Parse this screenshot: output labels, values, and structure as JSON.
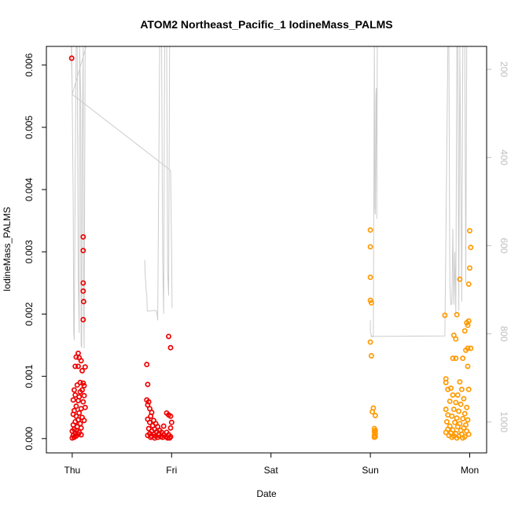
{
  "chart_data": {
    "type": "scatter",
    "title": "ATOM2 Northeast_Pacific_1 IodineMass_PALMS",
    "xlabel": "Date",
    "ylabel": "IodineMass_PALMS",
    "x_categories": [
      "Thu",
      "Fri",
      "Sat",
      "Sun",
      "Mon"
    ],
    "xlim": [
      -0.26,
      4.17
    ],
    "ylim": [
      -0.00023,
      0.0063
    ],
    "y_ticks": [
      "0.000",
      "0.001",
      "0.002",
      "0.003",
      "0.004",
      "0.005",
      "0.006"
    ],
    "y2_ticks": [
      "200",
      "400",
      "600",
      "800",
      "1000"
    ],
    "y2lim": [
      1070,
      148
    ],
    "grid": false,
    "legend": "none",
    "colors": {
      "red": "#ee0000",
      "orange": "#ff9900",
      "line": "#cccccc",
      "axis": "#000000",
      "y2_tick": "#bebebe"
    },
    "series": [
      {
        "color": "#ee0000",
        "points": [
          [
            -0.005,
            0.00611
          ],
          [
            0.11,
            0.00324
          ],
          [
            0.11,
            0.00302
          ],
          [
            0.11,
            0.0025
          ],
          [
            0.11,
            0.00237
          ],
          [
            0.115,
            0.0022
          ],
          [
            0.11,
            0.00191
          ],
          [
            0.06,
            0.00137
          ],
          [
            0.04,
            0.00131
          ],
          [
            0.07,
            0.0013
          ],
          [
            0.09,
            0.00125
          ],
          [
            0.03,
            0.00116
          ],
          [
            0.06,
            0.00116
          ],
          [
            0.13,
            0.00115
          ],
          [
            0.1,
            0.00109
          ],
          [
            0.08,
            0.0009
          ],
          [
            0.11,
            0.00089
          ],
          [
            0.05,
            0.00086
          ],
          [
            0.12,
            0.00085
          ],
          [
            0.02,
            0.00078
          ],
          [
            0.1,
            0.00078
          ],
          [
            0.08,
            0.00075
          ],
          [
            0.03,
            0.0007
          ],
          [
            0.12,
            0.00069
          ],
          [
            0.07,
            0.00067
          ],
          [
            0.01,
            0.00062
          ],
          [
            0.06,
            0.00061
          ],
          [
            0.11,
            0.00059
          ],
          [
            0.04,
            0.00052
          ],
          [
            0.13,
            0.0005
          ],
          [
            0.09,
            0.00048
          ],
          [
            0.02,
            0.00045
          ],
          [
            0.07,
            0.00041
          ],
          [
            0.01,
            0.00039
          ],
          [
            0.04,
            0.00036
          ],
          [
            0.1,
            0.00034
          ],
          [
            0.06,
            0.0003
          ],
          [
            0.12,
            0.00029
          ],
          [
            0.03,
            0.00027
          ],
          [
            0.08,
            0.00024
          ],
          [
            0.01,
            0.00022
          ],
          [
            0.05,
            0.00019
          ],
          [
            0.09,
            0.00017
          ],
          [
            0.02,
            0.00015
          ],
          [
            0.04,
            0.00013
          ],
          [
            0.0,
            0.00012
          ],
          [
            0.07,
            0.0001
          ],
          [
            0.03,
            9e-05
          ],
          [
            0.06,
            7e-05
          ],
          [
            0.09,
            6e-05
          ],
          [
            0.01,
            5e-05
          ],
          [
            0.04,
            4e-05
          ],
          [
            0.02,
            2e-05
          ],
          [
            0.0,
            1e-05
          ],
          [
            0.97,
            0.00164
          ],
          [
            0.99,
            0.00146
          ],
          [
            0.75,
            0.00119
          ],
          [
            0.76,
            0.00087
          ],
          [
            0.75,
            0.00062
          ],
          [
            0.77,
            0.00059
          ],
          [
            0.76,
            0.00054
          ],
          [
            0.78,
            0.00048
          ],
          [
            0.8,
            0.00042
          ],
          [
            0.79,
            0.00036
          ],
          [
            0.95,
            0.00041
          ],
          [
            0.97,
            0.00038
          ],
          [
            0.99,
            0.00036
          ],
          [
            0.76,
            0.00031
          ],
          [
            0.82,
            0.00029
          ],
          [
            1.0,
            0.00026
          ],
          [
            0.78,
            0.00026
          ],
          [
            0.84,
            0.00024
          ],
          [
            0.81,
            0.00021
          ],
          [
            0.86,
            0.00019
          ],
          [
            0.92,
            0.0002
          ],
          [
            0.99,
            0.00017
          ],
          [
            0.77,
            0.00016
          ],
          [
            0.83,
            0.00015
          ],
          [
            0.88,
            0.00013
          ],
          [
            0.8,
            0.00012
          ],
          [
            0.85,
            0.00011
          ],
          [
            0.9,
            0.0001
          ],
          [
            0.95,
            0.0001
          ],
          [
            0.78,
            8e-05
          ],
          [
            0.82,
            7e-05
          ],
          [
            0.87,
            7e-05
          ],
          [
            0.92,
            6e-05
          ],
          [
            0.97,
            6e-05
          ],
          [
            0.76,
            5e-05
          ],
          [
            0.8,
            4e-05
          ],
          [
            0.84,
            4e-05
          ],
          [
            0.89,
            3e-05
          ],
          [
            0.94,
            3e-05
          ],
          [
            0.99,
            3e-05
          ],
          [
            0.79,
            2e-05
          ],
          [
            0.86,
            2e-05
          ],
          [
            0.91,
            2e-05
          ],
          [
            0.96,
            1e-05
          ],
          [
            0.83,
            1e-05
          ],
          [
            0.98,
            1e-05
          ]
        ]
      },
      {
        "color": "#ff9900",
        "points": [
          [
            3.0,
            0.00335
          ],
          [
            3.0,
            0.00308
          ],
          [
            3.0,
            0.00259
          ],
          [
            3.0,
            0.00222
          ],
          [
            3.01,
            0.00218
          ],
          [
            3.0,
            0.00155
          ],
          [
            3.01,
            0.00133
          ],
          [
            3.03,
            0.00049
          ],
          [
            3.02,
            0.00043
          ],
          [
            3.05,
            0.00037
          ],
          [
            3.04,
            0.00016
          ],
          [
            3.05,
            0.00013
          ],
          [
            3.04,
            0.00011
          ],
          [
            3.05,
            8e-05
          ],
          [
            3.04,
            5e-05
          ],
          [
            3.05,
            3e-05
          ],
          [
            3.04,
            2e-05
          ],
          [
            4.0,
            0.00334
          ],
          [
            4.01,
            0.00307
          ],
          [
            4.0,
            0.00274
          ],
          [
            3.99,
            0.00248
          ],
          [
            3.9,
            0.00256
          ],
          [
            3.87,
            0.00199
          ],
          [
            3.75,
            0.00198
          ],
          [
            3.97,
            0.00186
          ],
          [
            3.99,
            0.00189
          ],
          [
            3.98,
            0.00182
          ],
          [
            3.95,
            0.00173
          ],
          [
            3.84,
            0.00166
          ],
          [
            3.86,
            0.0016
          ],
          [
            3.98,
            0.00145
          ],
          [
            4.01,
            0.00145
          ],
          [
            3.96,
            0.00142
          ],
          [
            3.83,
            0.00129
          ],
          [
            3.86,
            0.00129
          ],
          [
            3.93,
            0.00129
          ],
          [
            3.98,
            0.00116
          ],
          [
            3.76,
            0.00096
          ],
          [
            3.76,
            0.0009
          ],
          [
            3.9,
            0.00091
          ],
          [
            3.81,
            0.00081
          ],
          [
            3.78,
            0.00079
          ],
          [
            3.92,
            0.00079
          ],
          [
            3.99,
            0.00079
          ],
          [
            3.83,
            0.0007
          ],
          [
            3.88,
            0.0007
          ],
          [
            3.94,
            0.00064
          ],
          [
            3.8,
            0.0006
          ],
          [
            3.86,
            0.00058
          ],
          [
            3.91,
            0.00055
          ],
          [
            3.97,
            0.0005
          ],
          [
            3.76,
            0.00047
          ],
          [
            3.84,
            0.00047
          ],
          [
            3.89,
            0.00044
          ],
          [
            3.95,
            0.0004
          ],
          [
            3.78,
            0.00038
          ],
          [
            3.82,
            0.00036
          ],
          [
            3.87,
            0.00033
          ],
          [
            3.93,
            0.00032
          ],
          [
            3.98,
            0.0003
          ],
          [
            3.77,
            0.00027
          ],
          [
            3.85,
            0.00026
          ],
          [
            3.9,
            0.00024
          ],
          [
            3.96,
            0.00022
          ],
          [
            3.8,
            0.0002
          ],
          [
            3.88,
            0.00019
          ],
          [
            3.94,
            0.00017
          ],
          [
            3.78,
            0.00015
          ],
          [
            3.83,
            0.00014
          ],
          [
            3.91,
            0.00013
          ],
          [
            3.97,
            0.00012
          ],
          [
            3.76,
            0.0001
          ],
          [
            3.81,
            9e-05
          ],
          [
            3.86,
            8e-05
          ],
          [
            3.92,
            7e-05
          ],
          [
            3.99,
            7e-05
          ],
          [
            3.79,
            5e-05
          ],
          [
            3.84,
            4e-05
          ],
          [
            3.89,
            4e-05
          ],
          [
            3.95,
            3e-05
          ],
          [
            3.82,
            2e-05
          ],
          [
            3.87,
            1e-05
          ],
          [
            3.93,
            1e-05
          ]
        ]
      }
    ],
    "secondary_lines": [
      [
        [
          -0.01,
          0.0064
        ],
        [
          0.0,
          0.00553
        ],
        [
          -0.005,
          0.0064
        ],
        [
          0.01,
          0.0039
        ],
        [
          0.015,
          0.0017
        ],
        [
          0.02,
          0.00158
        ],
        [
          0.03,
          0.0043
        ],
        [
          0.04,
          0.0064
        ],
        [
          0.05,
          0.0064
        ],
        [
          0.06,
          0.0026
        ],
        [
          0.07,
          0.0017
        ],
        [
          0.075,
          0.0064
        ],
        [
          0.085,
          0.0055
        ],
        [
          0.09,
          0.0015
        ],
        [
          0.095,
          0.00146
        ],
        [
          0.1,
          0.0046
        ],
        [
          0.11,
          0.0064
        ],
        [
          0.115,
          0.002
        ],
        [
          0.12,
          0.00145
        ],
        [
          0.13,
          0.0064
        ],
        [
          0.14,
          0.0064
        ],
        [
          0.0,
          0.00553
        ],
        [
          0.99,
          0.00431
        ],
        [
          1.0,
          0.003
        ],
        [
          1.005,
          0.0021
        ]
      ],
      [
        [
          0.73,
          0.00287
        ],
        [
          0.735,
          0.0026
        ],
        [
          0.74,
          0.0025
        ],
        [
          0.745,
          0.00235
        ],
        [
          0.75,
          0.00233
        ],
        [
          0.755,
          0.00205
        ],
        [
          0.78,
          0.00205
        ],
        [
          0.82,
          0.00206
        ],
        [
          0.85,
          0.00205
        ],
        [
          0.86,
          0.0019
        ],
        [
          0.88,
          0.0064
        ],
        [
          0.9,
          0.0064
        ],
        [
          0.91,
          0.0029
        ],
        [
          0.92,
          0.002
        ],
        [
          0.93,
          0.0064
        ],
        [
          0.95,
          0.0064
        ],
        [
          0.96,
          0.0027
        ],
        [
          0.97,
          0.0023
        ],
        [
          0.98,
          0.0064
        ]
      ],
      [
        [
          3.0,
          0.0019
        ],
        [
          3.0,
          0.0017
        ],
        [
          3.02,
          0.00163
        ],
        [
          3.03,
          0.00164
        ],
        [
          3.04,
          0.0064
        ],
        [
          3.045,
          0.0037
        ],
        [
          3.05,
          0.0036
        ],
        [
          3.055,
          0.0055
        ],
        [
          3.06,
          0.00563
        ],
        [
          3.065,
          0.00353
        ],
        [
          3.07,
          0.0064
        ]
      ],
      [
        [
          3.0,
          0.00164
        ],
        [
          3.75,
          0.00165
        ],
        [
          3.78,
          0.0064
        ],
        [
          3.79,
          0.0064
        ],
        [
          3.8,
          0.0025
        ],
        [
          3.81,
          0.00215
        ],
        [
          3.82,
          0.00217
        ],
        [
          3.83,
          0.00337
        ],
        [
          3.84,
          0.00215
        ],
        [
          3.85,
          0.003
        ],
        [
          3.86,
          0.002
        ],
        [
          3.87,
          0.0064
        ],
        [
          3.88,
          0.0064
        ],
        [
          3.89,
          0.00205
        ],
        [
          3.9,
          0.0064
        ],
        [
          3.92,
          0.0022
        ],
        [
          3.93,
          0.0064
        ],
        [
          3.95,
          0.0064
        ],
        [
          3.96,
          0.0025
        ],
        [
          3.97,
          0.0064
        ],
        [
          4.0,
          0.0064
        ]
      ],
      [
        [
          3.58,
          0.0064
        ],
        [
          3.72,
          0.0064
        ]
      ]
    ]
  }
}
